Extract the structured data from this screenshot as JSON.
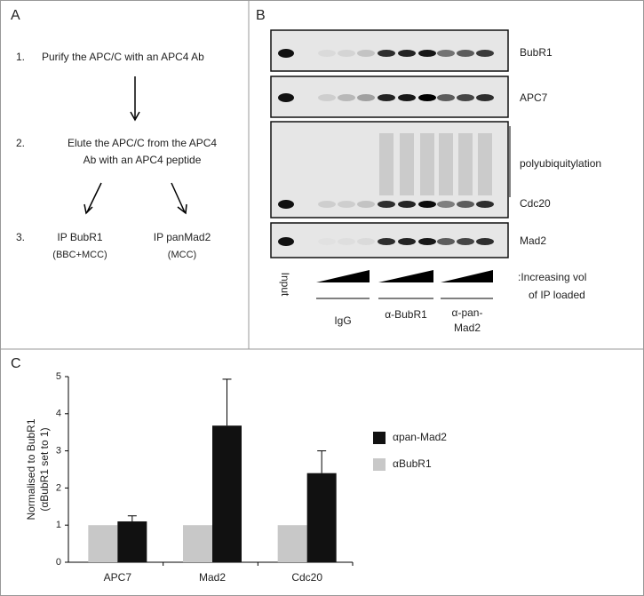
{
  "panel_a": {
    "label": "A",
    "steps": [
      {
        "number": "1.",
        "lines": [
          "Purify the APC/C with an APC4 Ab"
        ]
      },
      {
        "number": "2.",
        "lines": [
          "Elute the APC/C from the APC4",
          "Ab with an APC4 peptide"
        ]
      },
      {
        "number": "3.",
        "branches": [
          {
            "lines": [
              "IP BubR1",
              "(BBC+MCC)"
            ]
          },
          {
            "lines": [
              "IP panMad2",
              "(MCC)"
            ]
          }
        ]
      }
    ]
  },
  "panel_b": {
    "label": "B",
    "blot_labels": [
      "BubR1",
      "APC7",
      "polyubiquitylation",
      "Cdc20",
      "Mad2"
    ],
    "input_label": "Input",
    "loading_note": [
      ":Increasing vol",
      "of IP loaded"
    ],
    "groups": [
      [
        "IgG"
      ],
      [
        "α-BubR1"
      ],
      [
        "α-pan-",
        "Mad2"
      ]
    ]
  },
  "panel_c": {
    "label": "C"
  },
  "chart_data": {
    "type": "bar",
    "y_label": [
      "Normalised to BubR1",
      "(αBubR1 set to 1)"
    ],
    "categories": [
      "APC7",
      "Mad2",
      "Cdc20"
    ],
    "series": [
      {
        "name": "αBubR1",
        "color": "#c8c8c8",
        "values": [
          1,
          1,
          1
        ]
      },
      {
        "name": "αpan-Mad2",
        "color": "#111111",
        "values": [
          1.1,
          3.68,
          2.4
        ],
        "errors": [
          0.15,
          1.25,
          0.6
        ]
      }
    ],
    "ylim": [
      0,
      5
    ],
    "yticks": [
      0,
      1,
      2,
      3,
      4,
      5
    ],
    "grid": false
  }
}
